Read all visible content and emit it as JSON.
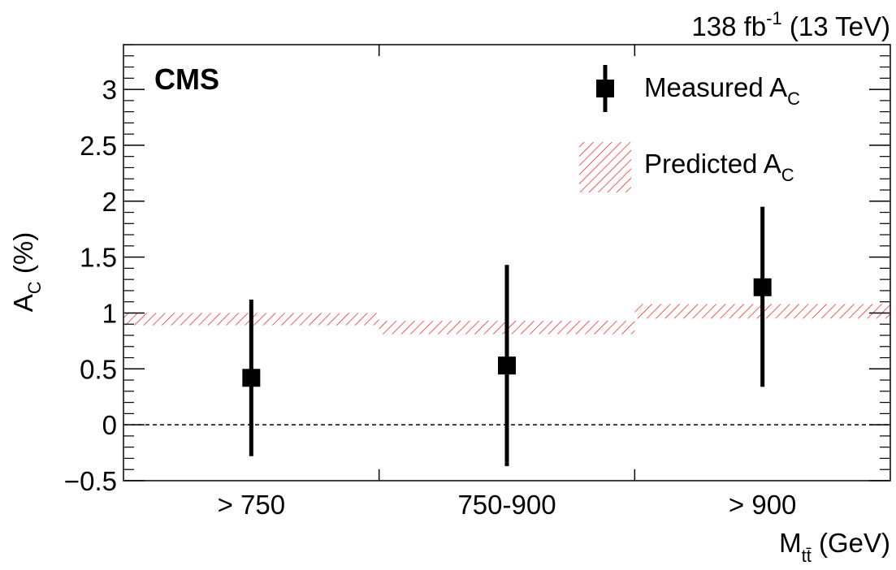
{
  "chart_data": {
    "type": "scatter",
    "experiment_label": "CMS",
    "lumi_label": {
      "value": "138 fb",
      "exponent": "-1",
      "energy": " (13 TeV)"
    },
    "xlabel": {
      "main": "M",
      "subscript": "tt̄",
      "unit": " (GeV)"
    },
    "ylabel": {
      "main": "A",
      "subscript": "C",
      "unit": " (%)"
    },
    "categories": [
      "> 750",
      "750-900",
      "> 900"
    ],
    "ylim": [
      -0.5,
      3.4
    ],
    "yticks": [
      -0.5,
      0,
      0.5,
      1,
      1.5,
      2,
      2.5,
      3
    ],
    "ytick_labels": [
      "−0.5",
      "0",
      "0.5",
      "1",
      "1.5",
      "2",
      "2.5",
      "3"
    ],
    "reference_line_y": 0,
    "series": [
      {
        "name": "Measured A",
        "name_subscript": "C",
        "type": "points_with_errors",
        "color": "#000000",
        "values": [
          0.42,
          0.53,
          1.23
        ],
        "err_low": [
          0.7,
          0.9,
          0.89
        ],
        "err_high": [
          0.7,
          0.9,
          0.72
        ]
      },
      {
        "name": "Predicted A",
        "name_subscript": "C",
        "type": "hatched_band",
        "color": "#ff0000",
        "low": [
          0.89,
          0.81,
          0.95
        ],
        "high": [
          1.0,
          0.93,
          1.08
        ]
      }
    ]
  }
}
